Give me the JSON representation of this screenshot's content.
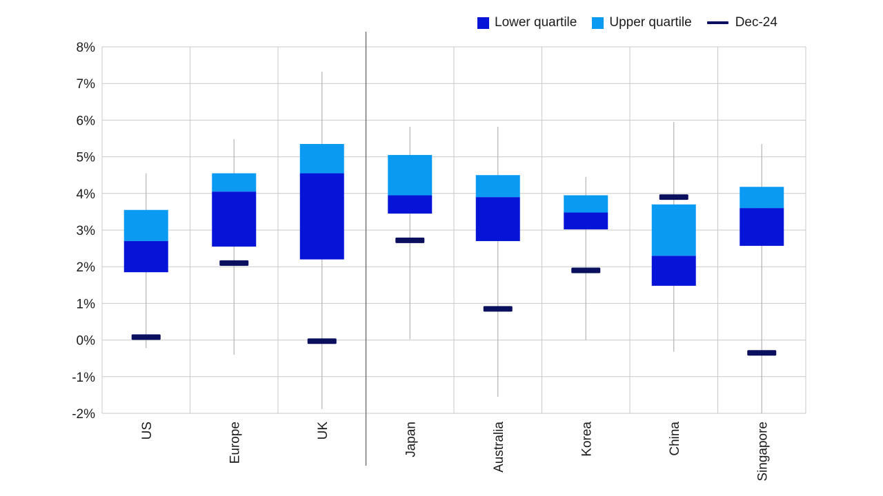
{
  "chart_data": {
    "type": "box",
    "title": "",
    "xlabel": "",
    "ylabel": "",
    "ylim": [
      -2,
      8
    ],
    "yticks": [
      -2,
      -1,
      0,
      1,
      2,
      3,
      4,
      5,
      6,
      7,
      8
    ],
    "ytick_labels": [
      "-2%",
      "-1%",
      "0%",
      "1%",
      "2%",
      "3%",
      "4%",
      "5%",
      "6%",
      "7%",
      "8%"
    ],
    "grid": true,
    "legend_position": "top-right",
    "group_divider_after": "UK",
    "categories": [
      "US",
      "Europe",
      "UK",
      "Japan",
      "Australia",
      "Korea",
      "China",
      "Singapore"
    ],
    "series": [
      {
        "name": "Lower quartile",
        "color": "#0514d6",
        "ranges": [
          [
            1.85,
            2.7
          ],
          [
            2.55,
            4.05
          ],
          [
            2.2,
            4.55
          ],
          [
            3.45,
            3.95
          ],
          [
            2.7,
            3.9
          ],
          [
            3.02,
            3.48
          ],
          [
            1.48,
            2.3
          ],
          [
            2.57,
            3.6
          ]
        ]
      },
      {
        "name": "Upper quartile",
        "color": "#0b9af2",
        "ranges": [
          [
            2.7,
            3.55
          ],
          [
            4.05,
            4.55
          ],
          [
            4.55,
            5.35
          ],
          [
            3.95,
            5.05
          ],
          [
            3.9,
            4.5
          ],
          [
            3.48,
            3.95
          ],
          [
            2.3,
            3.7
          ],
          [
            3.6,
            4.18
          ]
        ]
      },
      {
        "name": "Dec-24",
        "color": "#0a0f5e",
        "values": [
          0.08,
          2.1,
          -0.03,
          2.72,
          0.85,
          1.9,
          3.9,
          -0.35
        ]
      }
    ],
    "whiskers": [
      [
        -0.22,
        4.55
      ],
      [
        -0.4,
        5.48
      ],
      [
        -1.88,
        7.32
      ],
      [
        0.02,
        5.82
      ],
      [
        -1.55,
        5.82
      ],
      [
        0.0,
        4.45
      ],
      [
        -0.32,
        5.95
      ],
      [
        null,
        5.35
      ]
    ]
  }
}
